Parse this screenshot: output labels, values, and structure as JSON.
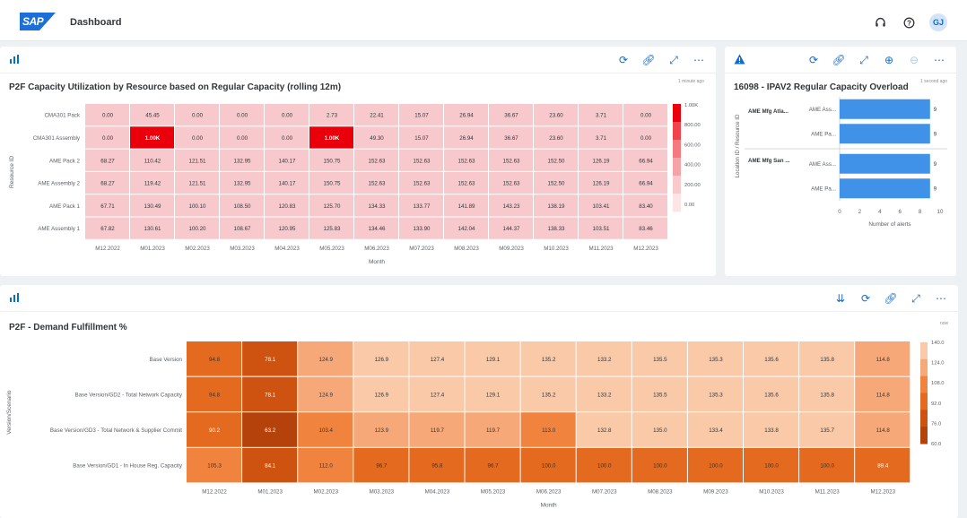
{
  "shell": {
    "logo": "SAP",
    "title": "Dashboard",
    "avatar": "GJ"
  },
  "card1": {
    "title": "P2F Capacity Utilization by Resource based on Regular Capacity (rolling 12m)",
    "stamp": "1 minute ago",
    "chart_data": {
      "type": "heatmap",
      "xlabel": "Month",
      "ylabel": "Resource ID",
      "x": [
        "M12.2022",
        "M01.2023",
        "M02.2023",
        "M03.2023",
        "M04.2023",
        "M05.2023",
        "M06.2023",
        "M07.2023",
        "M08.2023",
        "M09.2023",
        "M10.2023",
        "M11.2023",
        "M12.2023"
      ],
      "y": [
        "CMA301 Pack",
        "CMA301 Assembly",
        "AME Pack 2",
        "AME Assembly 2",
        "AME Pack 1",
        "AME Assembly 1"
      ],
      "values": [
        [
          "0.00",
          "45.45",
          "0.00",
          "0.00",
          "0.00",
          "2.73",
          "22.41",
          "15.07",
          "26.94",
          "36.67",
          "23.60",
          "3.71",
          "0.00"
        ],
        [
          "0.00",
          "1.00K",
          "0.00",
          "0.00",
          "0.00",
          "1.00K",
          "49.30",
          "15.07",
          "26.94",
          "36.67",
          "23.60",
          "3.71",
          "0.00"
        ],
        [
          "68.27",
          "110.42",
          "121.51",
          "132.95",
          "140.17",
          "150.75",
          "152.63",
          "152.63",
          "152.63",
          "152.63",
          "152.50",
          "126.19",
          "66.94"
        ],
        [
          "68.27",
          "119.42",
          "121.51",
          "132.95",
          "140.17",
          "150.75",
          "152.63",
          "152.63",
          "152.63",
          "152.63",
          "152.50",
          "126.19",
          "66.94"
        ],
        [
          "67.71",
          "130.49",
          "100.10",
          "108.50",
          "120.83",
          "125.70",
          "134.33",
          "133.77",
          "141.89",
          "143.23",
          "138.19",
          "103.41",
          "83.40"
        ],
        [
          "67.82",
          "130.61",
          "100.20",
          "108.67",
          "120.95",
          "125.83",
          "134.46",
          "133.90",
          "142.04",
          "144.37",
          "138.33",
          "103.51",
          "83.46"
        ]
      ],
      "highlight_value": "1.00K",
      "legend": [
        "1.00K",
        "800.00",
        "600.00",
        "400.00",
        "200.00",
        "0.00"
      ],
      "colors": {
        "cell": "#f8c9cc",
        "highlight": "#e9000b"
      }
    }
  },
  "card2": {
    "title": "16098 - IPAV2 Regular Capacity Overload",
    "stamp": "1 second ago",
    "chart_data": {
      "type": "bar",
      "orientation": "horizontal",
      "xlabel": "Number of alerts",
      "ylabel": "Location ID / Resource ID",
      "groups": [
        "AME Mfg Atla...",
        "AME Mfg San ..."
      ],
      "categories": [
        "AME Ass...",
        "AME Pa...",
        "AME Ass...",
        "AME Pa..."
      ],
      "values": [
        9,
        9,
        9,
        9
      ],
      "value_labels": [
        "9",
        "9",
        "9",
        "9"
      ],
      "xticks": [
        "0",
        "2",
        "4",
        "6",
        "8",
        "10"
      ],
      "xlim": [
        0,
        10
      ],
      "colors": {
        "bar": "#3f92e8"
      }
    }
  },
  "card3": {
    "title": "P2F - Demand Fulfillment %",
    "stamp": "now",
    "chart_data": {
      "type": "heatmap",
      "xlabel": "Month",
      "ylabel": "Version/Scenario",
      "x": [
        "M12.2022",
        "M01.2023",
        "M02.2023",
        "M03.2023",
        "M04.2023",
        "M05.2023",
        "M06.2023",
        "M07.2023",
        "M08.2023",
        "M09.2023",
        "M10.2023",
        "M11.2023",
        "M12.2023"
      ],
      "y": [
        "Base Version",
        "Base Version/GD2 - Total Network Capacity",
        "Base Version/GD3 - Total Network & Supplier Commit",
        "Base Version/GD1 - In House Reg. Capacity"
      ],
      "values": [
        [
          "94.8",
          "78.1",
          "124.9",
          "126.9",
          "127.4",
          "129.1",
          "135.2",
          "133.2",
          "135.5",
          "135.3",
          "135.6",
          "135.8",
          "114.8"
        ],
        [
          "94.8",
          "78.1",
          "124.9",
          "126.9",
          "127.4",
          "129.1",
          "135.2",
          "133.2",
          "135.5",
          "135.3",
          "135.6",
          "135.8",
          "114.8"
        ],
        [
          "90.2",
          "63.2",
          "103.4",
          "123.9",
          "119.7",
          "119.7",
          "113.0",
          "132.8",
          "135.0",
          "133.4",
          "133.8",
          "135.7",
          "114.8"
        ],
        [
          "105.3",
          "84.1",
          "112.0",
          "96.7",
          "95.8",
          "96.7",
          "100.0",
          "100.0",
          "100.0",
          "100.0",
          "100.0",
          "100.0",
          "89.4"
        ]
      ],
      "legend": [
        "140.0",
        "124.0",
        "108.0",
        "92.0",
        "76.0",
        "60.0"
      ],
      "colors": [
        "#f9c9a8",
        "#f6a878",
        "#f0843f",
        "#e36a1e",
        "#cf5310",
        "#b5420a"
      ]
    }
  }
}
